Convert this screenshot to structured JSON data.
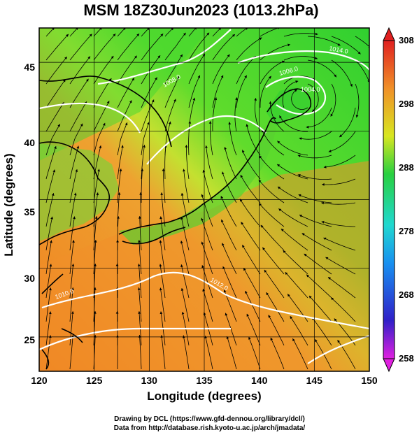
{
  "title": "MSM 18Z30Jun2023 (1013.2hPa)",
  "x_axis": {
    "label": "Longitude (degrees)",
    "ticks": [
      "120",
      "125",
      "130",
      "135",
      "140",
      "145",
      "150"
    ]
  },
  "y_axis": {
    "label": "Latitude  (degrees)",
    "ticks": [
      "25",
      "30",
      "35",
      "40",
      "45"
    ]
  },
  "colorbar": {
    "ticks": [
      "308",
      "298",
      "288",
      "278",
      "268",
      "258"
    ]
  },
  "contour_labels": [
    "1010.0",
    "1006.0",
    "1008.0",
    "1012.0",
    "1014.0",
    "1004.0"
  ],
  "credits": {
    "line1": "Drawing by DCL (https://www.gfd-dennou.org/library/dcl/)",
    "line2": "Data from http://database.rish.kyoto-u.ac.jp/arch/jmadata/"
  },
  "map_region": {
    "lon_range": [
      120,
      150
    ],
    "lat_range": [
      22.5,
      47.5
    ]
  },
  "colors": {
    "warm": "#f08a2a",
    "mid": "#d8e628",
    "cool": "#2ed02e",
    "coast": "#000000",
    "isobar": "#ffffff"
  }
}
